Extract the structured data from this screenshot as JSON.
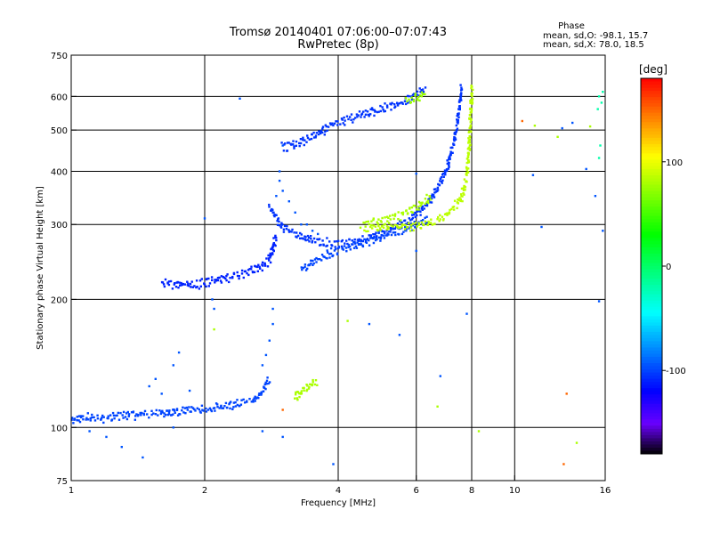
{
  "chart_data": {
    "type": "scatter",
    "title": "Tromsø 20140401 07:06:00–07:07:43",
    "subtitle": "RwPretec (8p)",
    "xlabel": "Frequency [MHz]",
    "ylabel": "Stationary phase Virtual Height [km]",
    "x_scale": "log",
    "y_scale": "log",
    "xlim": [
      1,
      16
    ],
    "ylim": [
      75,
      750
    ],
    "x_ticks": [
      1,
      2,
      4,
      6,
      8,
      10,
      16
    ],
    "x_tick_labels": [
      "1",
      "2",
      "4",
      "6",
      "8",
      "10",
      "16"
    ],
    "y_ticks": [
      75,
      100,
      200,
      300,
      400,
      500,
      600,
      750
    ],
    "y_tick_labels": [
      "75",
      "100",
      "200",
      "300",
      "400",
      "500",
      "600",
      "750"
    ],
    "grid": true,
    "stats": {
      "heading": "Phase",
      "line_o": "mean, sd,O:  -98.1, 15.7",
      "line_x": "mean, sd,X:  78.0, 18.5"
    },
    "colorbar": {
      "unit_label": "[deg]",
      "range": [
        -180,
        180
      ],
      "tick_values": [
        100,
        0,
        -100
      ],
      "tick_labels": [
        "100",
        "0",
        "-100"
      ]
    },
    "series": [
      {
        "kind": "trace",
        "phase": -100,
        "points": [
          [
            1.0,
            104
          ],
          [
            1.05,
            105
          ],
          [
            1.1,
            106
          ],
          [
            1.15,
            105
          ],
          [
            1.2,
            105
          ],
          [
            1.25,
            106
          ],
          [
            1.3,
            107
          ],
          [
            1.35,
            107
          ],
          [
            1.4,
            107
          ],
          [
            1.45,
            108
          ],
          [
            1.5,
            107
          ],
          [
            1.55,
            108
          ],
          [
            1.6,
            108
          ],
          [
            1.65,
            108
          ],
          [
            1.7,
            109
          ],
          [
            1.75,
            109
          ],
          [
            1.8,
            110
          ],
          [
            1.9,
            110
          ],
          [
            2.0,
            110
          ],
          [
            2.1,
            111
          ],
          [
            2.2,
            112
          ],
          [
            2.3,
            113
          ],
          [
            2.4,
            114
          ],
          [
            2.5,
            115
          ],
          [
            2.6,
            117
          ],
          [
            2.7,
            121
          ],
          [
            2.75,
            126
          ],
          [
            2.8,
            130
          ]
        ]
      },
      {
        "kind": "trace",
        "phase": -110,
        "points": [
          [
            1.6,
            218
          ],
          [
            1.7,
            217
          ],
          [
            1.8,
            217
          ],
          [
            1.9,
            216
          ],
          [
            2.0,
            219
          ],
          [
            2.1,
            222
          ],
          [
            2.2,
            224
          ],
          [
            2.3,
            226
          ],
          [
            2.4,
            229
          ],
          [
            2.5,
            232
          ],
          [
            2.6,
            236
          ],
          [
            2.7,
            240
          ],
          [
            2.8,
            248
          ],
          [
            2.85,
            262
          ],
          [
            2.9,
            282
          ]
        ]
      },
      {
        "kind": "trace",
        "phase": -105,
        "points": [
          [
            2.8,
            330
          ],
          [
            2.9,
            310
          ],
          [
            3.0,
            295
          ],
          [
            3.2,
            285
          ],
          [
            3.4,
            278
          ],
          [
            3.6,
            274
          ],
          [
            3.8,
            271
          ],
          [
            4.0,
            270
          ],
          [
            4.3,
            273
          ],
          [
            4.6,
            278
          ],
          [
            5.0,
            286
          ],
          [
            5.5,
            298
          ],
          [
            6.0,
            316
          ],
          [
            6.5,
            345
          ],
          [
            7.0,
            400
          ],
          [
            7.3,
            470
          ],
          [
            7.5,
            560
          ],
          [
            7.6,
            635
          ]
        ]
      },
      {
        "kind": "trace",
        "phase": -100,
        "points": [
          [
            3.3,
            235
          ],
          [
            3.6,
            248
          ],
          [
            3.9,
            258
          ],
          [
            4.2,
            265
          ],
          [
            4.6,
            272
          ],
          [
            5.0,
            280
          ],
          [
            5.5,
            290
          ],
          [
            6.0,
            300
          ],
          [
            6.4,
            310
          ]
        ]
      },
      {
        "kind": "trace",
        "phase": -105,
        "points": [
          [
            3.0,
            455
          ],
          [
            3.2,
            465
          ],
          [
            3.4,
            475
          ],
          [
            3.6,
            490
          ],
          [
            3.8,
            508
          ],
          [
            4.0,
            520
          ],
          [
            4.3,
            535
          ],
          [
            4.6,
            548
          ],
          [
            5.0,
            560
          ],
          [
            5.5,
            575
          ],
          [
            5.8,
            590
          ],
          [
            6.1,
            612
          ],
          [
            6.3,
            625
          ]
        ]
      },
      {
        "kind": "trace",
        "phase": 85,
        "points": [
          [
            4.6,
            293
          ],
          [
            5.0,
            295
          ],
          [
            5.5,
            296
          ],
          [
            6.0,
            298
          ],
          [
            6.5,
            303
          ],
          [
            7.0,
            315
          ],
          [
            7.3,
            328
          ],
          [
            7.6,
            348
          ],
          [
            7.8,
            390
          ],
          [
            7.9,
            460
          ],
          [
            7.95,
            540
          ],
          [
            8.0,
            600
          ],
          [
            8.0,
            635
          ]
        ]
      },
      {
        "kind": "trace",
        "phase": 80,
        "points": [
          [
            4.5,
            300
          ],
          [
            5.0,
            305
          ],
          [
            5.5,
            315
          ],
          [
            6.0,
            330
          ],
          [
            6.5,
            348
          ]
        ]
      },
      {
        "kind": "trace",
        "phase": 75,
        "points": [
          [
            5.7,
            585
          ],
          [
            5.9,
            592
          ],
          [
            6.1,
            600
          ],
          [
            6.3,
            612
          ]
        ]
      },
      {
        "kind": "trace",
        "phase": 80,
        "points": [
          [
            3.2,
            118
          ],
          [
            3.3,
            121
          ],
          [
            3.4,
            124
          ],
          [
            3.5,
            127
          ],
          [
            3.6,
            128
          ]
        ]
      },
      {
        "kind": "scatter",
        "phase": -95,
        "points": [
          [
            2.8,
            160
          ],
          [
            2.75,
            148
          ],
          [
            2.7,
            140
          ],
          [
            2.85,
            175
          ],
          [
            2.85,
            190
          ],
          [
            2.9,
            350
          ],
          [
            2.95,
            380
          ],
          [
            3.0,
            360
          ],
          [
            3.1,
            340
          ],
          [
            3.2,
            320
          ],
          [
            3.3,
            300
          ],
          [
            3.4,
            300
          ],
          [
            3.5,
            290
          ],
          [
            3.6,
            285
          ],
          [
            2.95,
            400
          ],
          [
            3.0,
            460
          ],
          [
            2.4,
            593
          ],
          [
            2.0,
            310
          ],
          [
            2.1,
            190
          ],
          [
            2.08,
            200
          ],
          [
            1.6,
            120
          ],
          [
            1.5,
            125
          ],
          [
            1.7,
            140
          ],
          [
            1.85,
            122
          ],
          [
            1.55,
            130
          ],
          [
            1.75,
            150
          ],
          [
            1.3,
            90
          ],
          [
            1.2,
            95
          ],
          [
            1.1,
            98
          ],
          [
            1.45,
            85
          ],
          [
            1.7,
            100
          ],
          [
            2.7,
            98
          ],
          [
            3.0,
            95
          ],
          [
            3.9,
            82
          ],
          [
            4.7,
            175
          ],
          [
            5.5,
            165
          ],
          [
            6.8,
            132
          ],
          [
            6.0,
            395
          ],
          [
            6.0,
            260
          ],
          [
            7.8,
            185
          ],
          [
            11.0,
            392
          ],
          [
            11.5,
            296
          ],
          [
            12.8,
            505
          ],
          [
            13.5,
            520
          ],
          [
            14.5,
            405
          ],
          [
            15.2,
            350
          ],
          [
            15.5,
            198
          ],
          [
            15.8,
            290
          ]
        ]
      },
      {
        "kind": "scatter",
        "phase": 80,
        "points": [
          [
            2.1,
            170
          ],
          [
            4.2,
            178
          ],
          [
            6.7,
            112
          ],
          [
            8.3,
            98
          ],
          [
            13.8,
            92
          ],
          [
            12.5,
            482
          ],
          [
            11.1,
            512
          ],
          [
            14.8,
            510
          ]
        ]
      },
      {
        "kind": "scatter",
        "phase": 150,
        "points": [
          [
            10.4,
            525
          ],
          [
            13.1,
            120
          ],
          [
            12.9,
            82
          ],
          [
            3.0,
            110
          ]
        ]
      },
      {
        "kind": "scatter",
        "phase": -20,
        "points": [
          [
            15.5,
            600
          ],
          [
            15.4,
            560
          ],
          [
            15.6,
            460
          ],
          [
            15.5,
            430
          ],
          [
            15.8,
            615
          ],
          [
            15.7,
            580
          ]
        ]
      }
    ]
  }
}
